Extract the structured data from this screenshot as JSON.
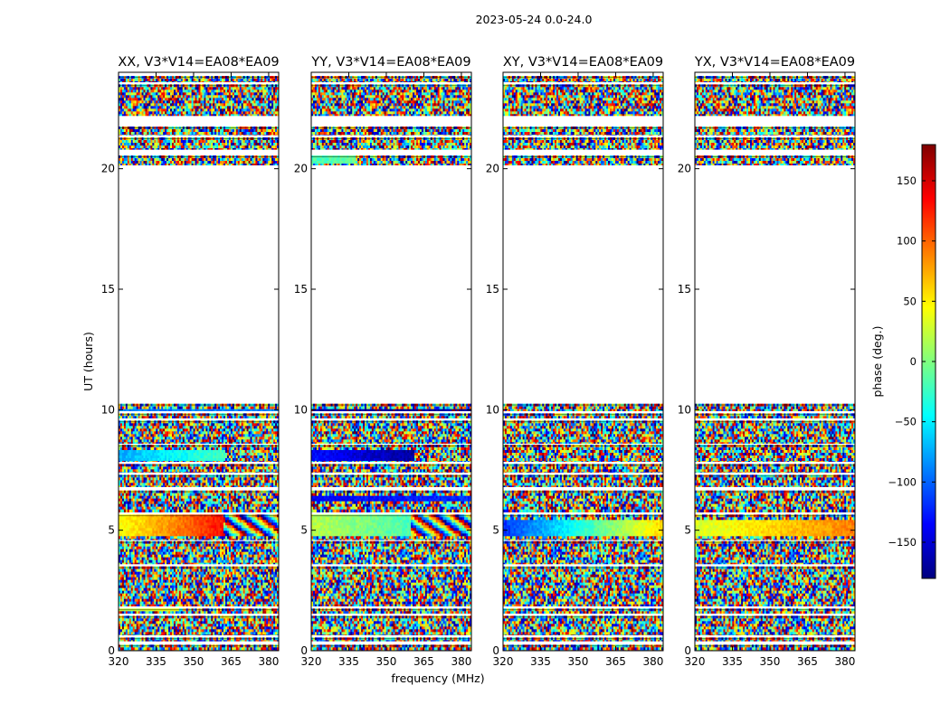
{
  "figure": {
    "suptitle": "2023-05-24 0.0-24.0",
    "ylabel": "UT (hours)",
    "xlabel": "frequency (MHz)"
  },
  "chart_data": {
    "type": "heatmap",
    "xlim": [
      320,
      384
    ],
    "ylim": [
      0,
      24
    ],
    "xticks": [
      320,
      335,
      350,
      365,
      380
    ],
    "yticks": [
      0,
      5,
      10,
      15,
      20
    ],
    "colorbar": {
      "label": "phase (deg.)",
      "range": [
        -180,
        180
      ],
      "ticks": [
        150,
        100,
        50,
        0,
        -50,
        -100,
        -150
      ],
      "colormap": "jet",
      "colors": [
        "#00007f",
        "#0000ff",
        "#007fff",
        "#00ffff",
        "#7fff7f",
        "#ffff00",
        "#ff7f00",
        "#ff0000",
        "#7f0000"
      ]
    },
    "data_rows_ut": [
      [
        0.0,
        0.25
      ],
      [
        0.4,
        0.55
      ],
      [
        0.65,
        1.45
      ],
      [
        1.55,
        1.75
      ],
      [
        1.85,
        3.5
      ],
      [
        3.6,
        4.55
      ],
      [
        4.6,
        5.65
      ],
      [
        5.75,
        6.65
      ],
      [
        6.8,
        7.3
      ],
      [
        7.4,
        7.75
      ],
      [
        7.85,
        8.55
      ],
      [
        8.6,
        9.55
      ],
      [
        9.65,
        9.85
      ],
      [
        9.95,
        10.25
      ],
      [
        20.15,
        20.55
      ],
      [
        20.8,
        21.3
      ],
      [
        21.4,
        21.75
      ],
      [
        22.2,
        23.5
      ],
      [
        23.6,
        23.85
      ]
    ],
    "panels": [
      {
        "title": "XX, V3*V14=EA08*EA09",
        "coherent_bands": [
          {
            "ut": [
              4.7,
              5.6
            ],
            "f_end": 362,
            "phase_start": 40,
            "phase_end": 130,
            "then": "wrap"
          },
          {
            "ut": [
              7.9,
              8.3
            ],
            "f_end": 363,
            "phase_start": -75,
            "phase_end": -20,
            "then": "noise"
          },
          {
            "ut": [
              9.95,
              10.0
            ],
            "f_end": 384,
            "phase_start": -90,
            "phase_end": -90,
            "then": "noise"
          },
          {
            "ut": [
              1.6,
              1.75
            ],
            "f_end": 344,
            "phase_start": 20,
            "phase_end": 40,
            "then": "noise"
          }
        ]
      },
      {
        "title": "YY, V3*V14=EA08*EA09",
        "coherent_bands": [
          {
            "ut": [
              4.7,
              5.6
            ],
            "f_end": 360,
            "phase_start": 20,
            "phase_end": -20,
            "then": "wrap"
          },
          {
            "ut": [
              7.9,
              8.3
            ],
            "f_end": 361,
            "phase_start": -130,
            "phase_end": -170,
            "then": "noise"
          },
          {
            "ut": [
              9.95,
              10.0
            ],
            "f_end": 384,
            "phase_start": -170,
            "phase_end": -170,
            "then": "noise"
          },
          {
            "ut": [
              5.5,
              5.65
            ],
            "f_end": 384,
            "phase_start": -150,
            "phase_end": -140,
            "then": "noise"
          },
          {
            "ut": [
              6.2,
              6.45
            ],
            "f_end": 384,
            "phase_start": -140,
            "phase_end": -120,
            "then": "noise"
          },
          {
            "ut": [
              20.2,
              20.5
            ],
            "f_end": 338,
            "phase_start": -20,
            "phase_end": -10,
            "then": "noise"
          }
        ]
      },
      {
        "title": "XY, V3*V14=EA08*EA09",
        "coherent_bands": [
          {
            "ut": [
              4.8,
              5.4
            ],
            "f_end": 384,
            "phase_start": -120,
            "phase_end": 60,
            "then": "wrap"
          }
        ]
      },
      {
        "title": "YX, V3*V14=EA08*EA09",
        "coherent_bands": [
          {
            "ut": [
              4.8,
              5.45
            ],
            "f_end": 384,
            "phase_start": 30,
            "phase_end": 90,
            "then": "wrap"
          }
        ]
      }
    ]
  }
}
